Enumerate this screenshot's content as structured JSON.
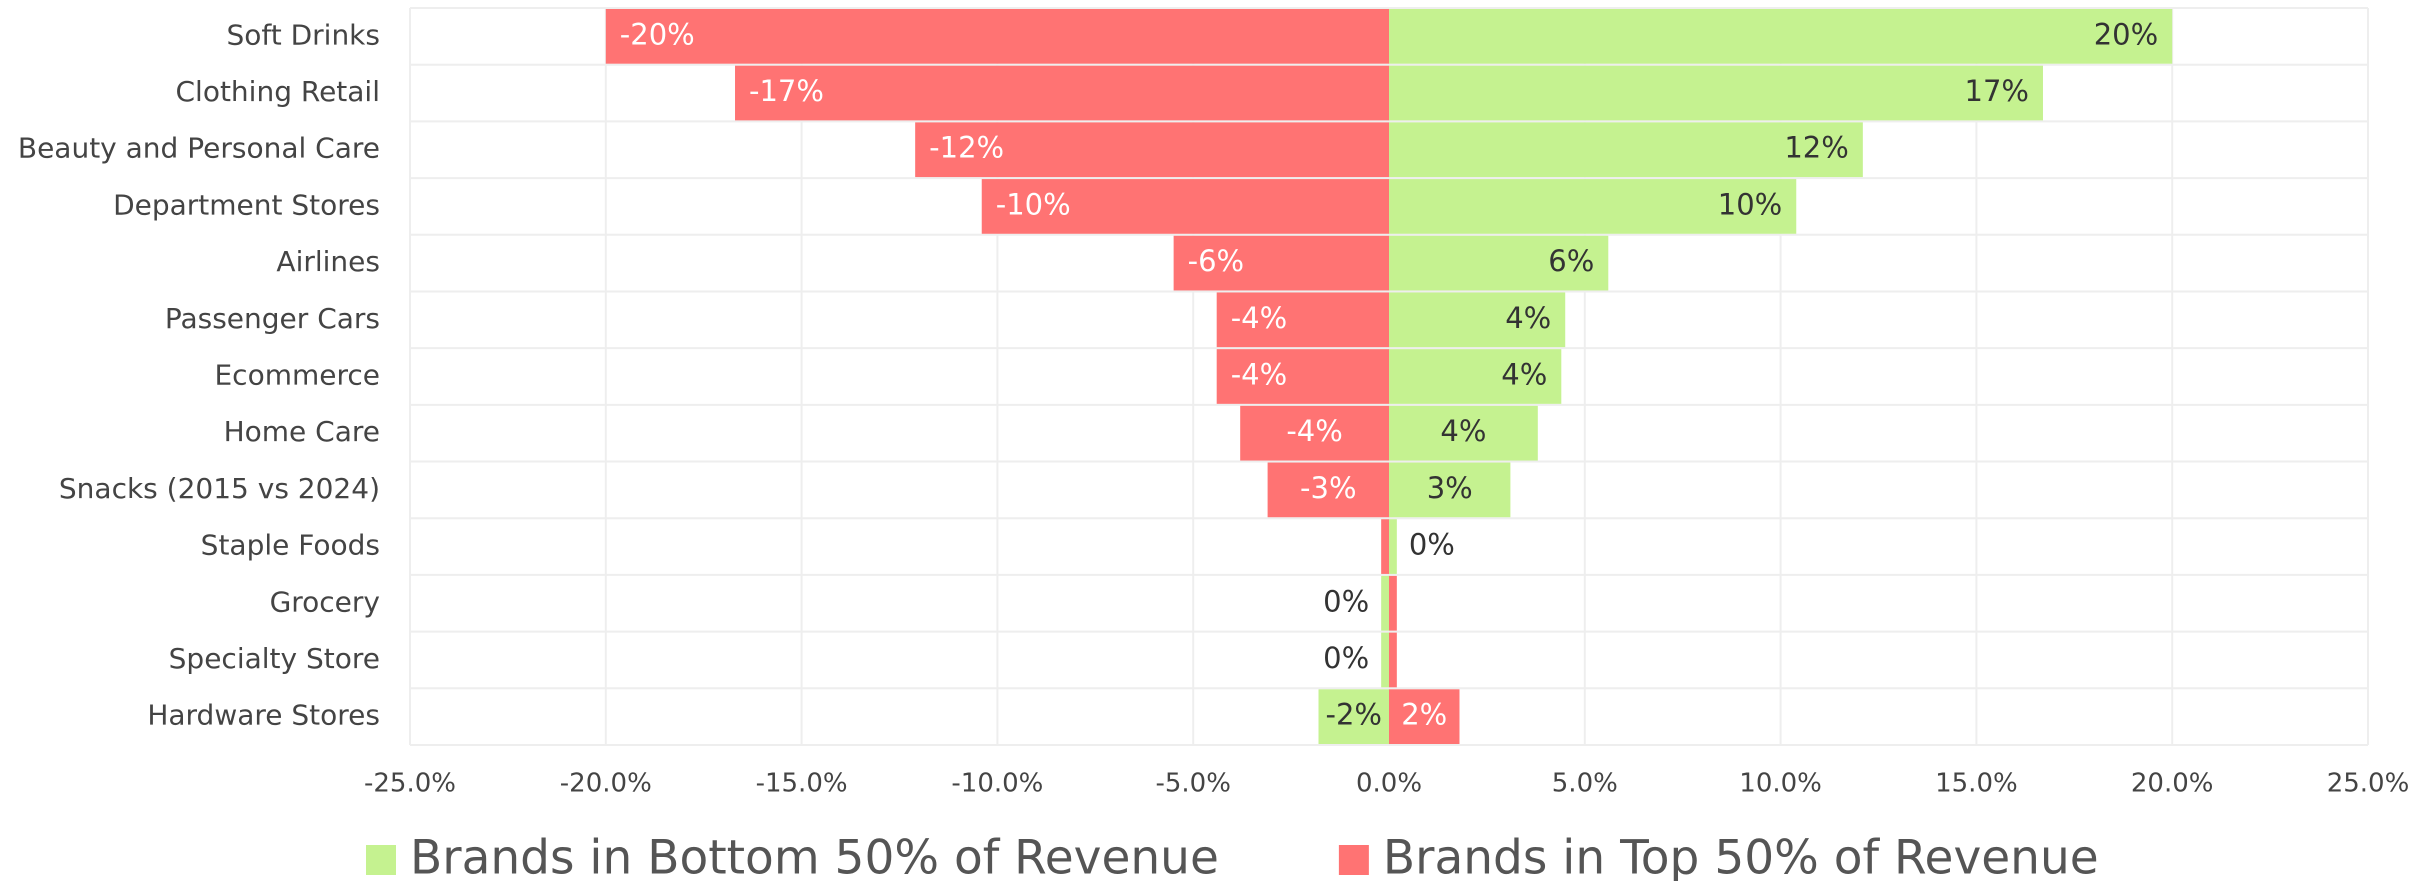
{
  "chart_data": {
    "type": "diverging-bar",
    "categories": [
      "Soft Drinks",
      "Clothing Retail",
      "Beauty and Personal Care",
      "Department Stores",
      "Airlines",
      "Passenger Cars",
      "Ecommerce",
      "Home Care",
      "Snacks (2015 vs 2024)",
      "Staple Foods",
      "Grocery",
      "Specialty Store",
      "Hardware Stores"
    ],
    "series": [
      {
        "name": "Brands in Bottom 50% of Revenue",
        "color": "#c5f290",
        "values": [
          20.0,
          16.7,
          12.1,
          10.4,
          5.6,
          4.5,
          4.4,
          3.8,
          3.1,
          0.2,
          -0.2,
          -0.2,
          -1.8
        ],
        "value_labels": [
          "20%",
          "17%",
          "12%",
          "10%",
          "6%",
          "4%",
          "4%",
          "4%",
          "3%",
          "0%",
          "0%",
          "0%",
          "-2%"
        ]
      },
      {
        "name": "Brands in Top 50% of Revenue",
        "color": "#ff7373",
        "values": [
          -20.0,
          -16.7,
          -12.1,
          -10.4,
          -5.5,
          -4.4,
          -4.4,
          -3.8,
          -3.1,
          -0.2,
          0.2,
          0.2,
          1.8
        ],
        "value_labels": [
          "-20%",
          "-17%",
          "-12%",
          "-10%",
          "-6%",
          "-4%",
          "-4%",
          "-4%",
          "-3%",
          null,
          null,
          null,
          "2%"
        ]
      }
    ],
    "xlim": [
      -25,
      25
    ],
    "xticks": [
      {
        "value": -25,
        "label": "-25.0%"
      },
      {
        "value": -20,
        "label": "-20.0%"
      },
      {
        "value": -15,
        "label": "-15.0%"
      },
      {
        "value": -10,
        "label": "-10.0%"
      },
      {
        "value": -5,
        "label": "-5.0%"
      },
      {
        "value": 0,
        "label": "0.0%"
      },
      {
        "value": 5,
        "label": "5.0%"
      },
      {
        "value": 10,
        "label": "10.0%"
      },
      {
        "value": 15,
        "label": "15.0%"
      },
      {
        "value": 20,
        "label": "20.0%"
      },
      {
        "value": 25,
        "label": "25.0%"
      }
    ],
    "grid": true
  }
}
